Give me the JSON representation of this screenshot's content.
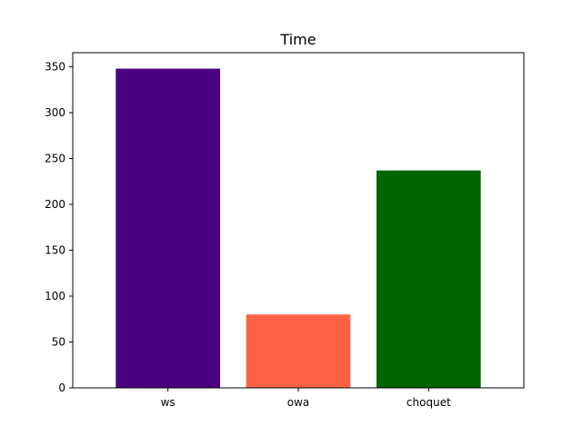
{
  "chart_data": {
    "type": "bar",
    "title": "Time",
    "xlabel": "",
    "ylabel": "",
    "categories": [
      "ws",
      "owa",
      "choquet"
    ],
    "values": [
      348,
      80,
      237
    ],
    "colors": [
      "#4b0082",
      "#ff6347",
      "#006400"
    ],
    "ylim": [
      0,
      365.4
    ],
    "yticks": [
      0,
      50,
      100,
      150,
      200,
      250,
      300,
      350
    ],
    "grid": false,
    "legend": "none"
  }
}
